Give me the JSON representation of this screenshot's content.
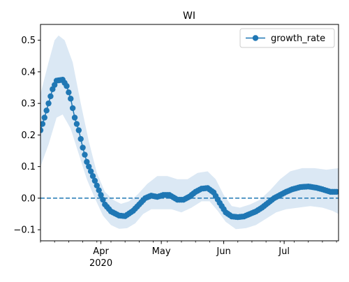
{
  "chart_data": {
    "type": "line",
    "title": "WI",
    "xlabel": "",
    "ylabel": "",
    "x_start": "2020-03-02",
    "x_end": "2020-07-28",
    "xlim": [
      "2020-03-02",
      "2020-07-28"
    ],
    "ylim": [
      -0.135,
      0.55
    ],
    "yticks": [
      -0.1,
      0.0,
      0.1,
      0.2,
      0.3,
      0.4,
      0.5
    ],
    "ytick_labels": [
      "−0.1",
      "0.0",
      "0.1",
      "0.2",
      "0.3",
      "0.4",
      "0.5"
    ],
    "xticks": [
      {
        "date": "2020-04-01",
        "label": "Apr",
        "sublabel": "2020"
      },
      {
        "date": "2020-05-01",
        "label": "May",
        "sublabel": ""
      },
      {
        "date": "2020-06-01",
        "label": "Jun",
        "sublabel": ""
      },
      {
        "date": "2020-07-01",
        "label": "Jul",
        "sublabel": ""
      }
    ],
    "reference_line": {
      "y": 0.0,
      "style": "dashed"
    },
    "legend": {
      "position": "upper right"
    },
    "colors": {
      "series": "#1f77b4",
      "band": "#dbe8f4"
    },
    "series": [
      {
        "name": "growth_rate",
        "marker": "circle",
        "anchors": [
          [
            "2020-03-02",
            0.215
          ],
          [
            "2020-03-04",
            0.255
          ],
          [
            "2020-03-06",
            0.3
          ],
          [
            "2020-03-08",
            0.345
          ],
          [
            "2020-03-10",
            0.372
          ],
          [
            "2020-03-13",
            0.375
          ],
          [
            "2020-03-15",
            0.355
          ],
          [
            "2020-03-17",
            0.315
          ],
          [
            "2020-03-19",
            0.255
          ],
          [
            "2020-03-21",
            0.215
          ],
          [
            "2020-03-23",
            0.16
          ],
          [
            "2020-03-25",
            0.115
          ],
          [
            "2020-03-28",
            0.07
          ],
          [
            "2020-03-31",
            0.025
          ],
          [
            "2020-04-03",
            -0.02
          ],
          [
            "2020-04-06",
            -0.042
          ],
          [
            "2020-04-10",
            -0.055
          ],
          [
            "2020-04-13",
            -0.057
          ],
          [
            "2020-04-17",
            -0.04
          ],
          [
            "2020-04-20",
            -0.02
          ],
          [
            "2020-04-23",
            0.0
          ],
          [
            "2020-04-26",
            0.008
          ],
          [
            "2020-04-29",
            0.004
          ],
          [
            "2020-05-02",
            0.01
          ],
          [
            "2020-05-05",
            0.01
          ],
          [
            "2020-05-09",
            -0.005
          ],
          [
            "2020-05-12",
            -0.005
          ],
          [
            "2020-05-15",
            0.005
          ],
          [
            "2020-05-18",
            0.02
          ],
          [
            "2020-05-21",
            0.03
          ],
          [
            "2020-05-24",
            0.032
          ],
          [
            "2020-05-27",
            0.018
          ],
          [
            "2020-05-30",
            -0.015
          ],
          [
            "2020-06-02",
            -0.045
          ],
          [
            "2020-06-05",
            -0.058
          ],
          [
            "2020-06-08",
            -0.06
          ],
          [
            "2020-06-11",
            -0.058
          ],
          [
            "2020-06-14",
            -0.05
          ],
          [
            "2020-06-17",
            -0.042
          ],
          [
            "2020-06-20",
            -0.03
          ],
          [
            "2020-06-23",
            -0.015
          ],
          [
            "2020-06-26",
            0.0
          ],
          [
            "2020-06-29",
            0.01
          ],
          [
            "2020-07-02",
            0.02
          ],
          [
            "2020-07-05",
            0.028
          ],
          [
            "2020-07-09",
            0.035
          ],
          [
            "2020-07-13",
            0.037
          ],
          [
            "2020-07-17",
            0.033
          ],
          [
            "2020-07-20",
            0.028
          ],
          [
            "2020-07-24",
            0.02
          ],
          [
            "2020-07-27",
            0.02
          ]
        ],
        "band_lower_anchors": [
          [
            "2020-03-02",
            0.1
          ],
          [
            "2020-03-06",
            0.17
          ],
          [
            "2020-03-10",
            0.255
          ],
          [
            "2020-03-13",
            0.265
          ],
          [
            "2020-03-17",
            0.22
          ],
          [
            "2020-03-21",
            0.14
          ],
          [
            "2020-03-25",
            0.06
          ],
          [
            "2020-03-29",
            0.0
          ],
          [
            "2020-04-02",
            -0.055
          ],
          [
            "2020-04-06",
            -0.085
          ],
          [
            "2020-04-10",
            -0.097
          ],
          [
            "2020-04-14",
            -0.095
          ],
          [
            "2020-04-18",
            -0.08
          ],
          [
            "2020-04-22",
            -0.05
          ],
          [
            "2020-04-26",
            -0.035
          ],
          [
            "2020-05-01",
            -0.035
          ],
          [
            "2020-05-06",
            -0.035
          ],
          [
            "2020-05-11",
            -0.045
          ],
          [
            "2020-05-16",
            -0.03
          ],
          [
            "2020-05-21",
            -0.01
          ],
          [
            "2020-05-25",
            -0.01
          ],
          [
            "2020-05-29",
            -0.04
          ],
          [
            "2020-06-02",
            -0.075
          ],
          [
            "2020-06-07",
            -0.098
          ],
          [
            "2020-06-12",
            -0.095
          ],
          [
            "2020-06-17",
            -0.085
          ],
          [
            "2020-06-22",
            -0.065
          ],
          [
            "2020-06-27",
            -0.045
          ],
          [
            "2020-07-02",
            -0.035
          ],
          [
            "2020-07-08",
            -0.03
          ],
          [
            "2020-07-14",
            -0.025
          ],
          [
            "2020-07-20",
            -0.03
          ],
          [
            "2020-07-25",
            -0.04
          ],
          [
            "2020-07-28",
            -0.05
          ]
        ],
        "band_upper_anchors": [
          [
            "2020-03-02",
            0.33
          ],
          [
            "2020-03-06",
            0.43
          ],
          [
            "2020-03-09",
            0.5
          ],
          [
            "2020-03-11",
            0.515
          ],
          [
            "2020-03-14",
            0.5
          ],
          [
            "2020-03-18",
            0.43
          ],
          [
            "2020-03-22",
            0.3
          ],
          [
            "2020-03-26",
            0.18
          ],
          [
            "2020-03-30",
            0.08
          ],
          [
            "2020-04-03",
            0.02
          ],
          [
            "2020-04-07",
            -0.005
          ],
          [
            "2020-04-11",
            -0.018
          ],
          [
            "2020-04-15",
            -0.01
          ],
          [
            "2020-04-19",
            0.01
          ],
          [
            "2020-04-24",
            0.045
          ],
          [
            "2020-04-29",
            0.07
          ],
          [
            "2020-05-04",
            0.07
          ],
          [
            "2020-05-09",
            0.06
          ],
          [
            "2020-05-14",
            0.06
          ],
          [
            "2020-05-19",
            0.08
          ],
          [
            "2020-05-24",
            0.085
          ],
          [
            "2020-05-28",
            0.06
          ],
          [
            "2020-06-01",
            0.01
          ],
          [
            "2020-06-05",
            -0.025
          ],
          [
            "2020-06-09",
            -0.03
          ],
          [
            "2020-06-14",
            -0.02
          ],
          [
            "2020-06-19",
            -0.005
          ],
          [
            "2020-06-24",
            0.025
          ],
          [
            "2020-06-29",
            0.06
          ],
          [
            "2020-07-04",
            0.085
          ],
          [
            "2020-07-10",
            0.095
          ],
          [
            "2020-07-16",
            0.095
          ],
          [
            "2020-07-22",
            0.09
          ],
          [
            "2020-07-28",
            0.095
          ]
        ]
      }
    ]
  }
}
